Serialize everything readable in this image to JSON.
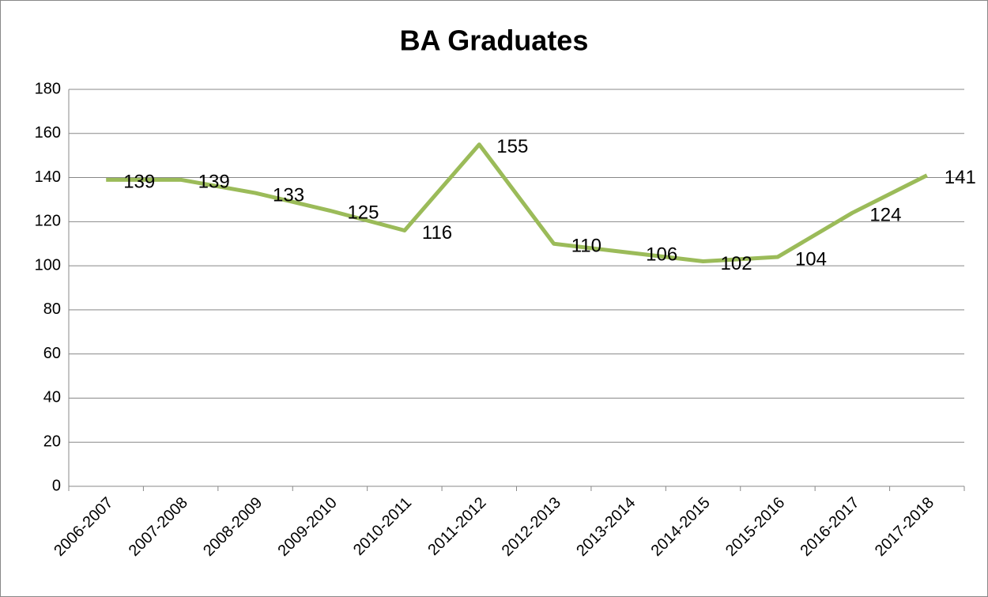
{
  "chart_data": {
    "type": "line",
    "title": "BA Graduates",
    "categories": [
      "2006-2007",
      "2007-2008",
      "2008-2009",
      "2009-2010",
      "2010-2011",
      "2011-2012",
      "2012-2013",
      "2013-2014",
      "2014-2015",
      "2015-2016",
      "2016-2017",
      "2017-2018"
    ],
    "series": [
      {
        "name": "BA Graduates",
        "color": "#9bbb59",
        "values": [
          139,
          139,
          133,
          125,
          116,
          155,
          110,
          106,
          102,
          104,
          124,
          141
        ]
      }
    ],
    "ylim": [
      0,
      180
    ],
    "yticks": [
      0,
      20,
      40,
      60,
      80,
      100,
      120,
      140,
      160,
      180
    ],
    "grid": true
  }
}
